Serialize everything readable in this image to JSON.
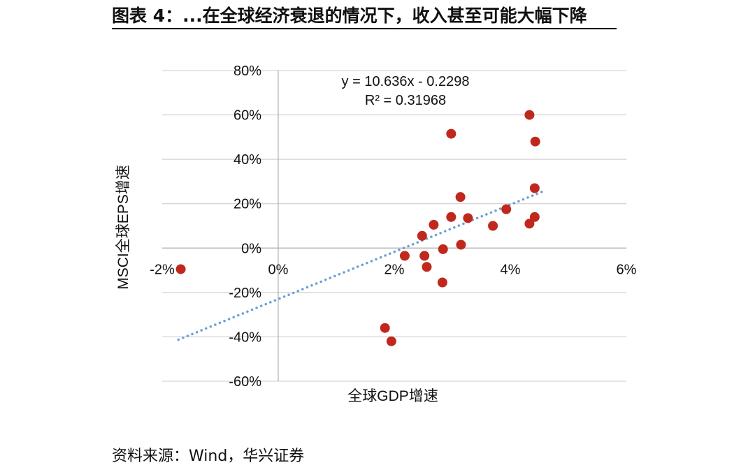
{
  "page": {
    "title": "图表 4：...在全球经济衰退的情况下，收入甚至可能大幅下降",
    "source": "资料来源：Wind，华兴证券"
  },
  "chart_data": {
    "type": "scatter",
    "xlabel": "全球GDP增速",
    "ylabel": "MSCI全球EPS增速",
    "xlim": [
      -0.02,
      0.06
    ],
    "ylim": [
      -0.6,
      0.8
    ],
    "x_ticks": [
      -0.02,
      0,
      0.02,
      0.04,
      0.06
    ],
    "x_tick_labels": [
      "-2%",
      "0%",
      "2%",
      "4%",
      "6%"
    ],
    "y_ticks": [
      -0.6,
      -0.4,
      -0.2,
      0,
      0.2,
      0.4,
      0.6,
      0.8
    ],
    "y_tick_labels": [
      "-60%",
      "-40%",
      "-20%",
      "0%",
      "20%",
      "40%",
      "60%",
      "80%"
    ],
    "grid": "horizontal",
    "marker_color": "#c0281d",
    "trendline_color": "#6a9fd4",
    "trendline": {
      "slope": 10.636,
      "intercept": -0.2298,
      "x_range": [
        -0.0172,
        0.0455
      ],
      "equation": "y = 10.636x - 0.2298",
      "r2": "R² = 0.31968"
    },
    "points": [
      {
        "x": -0.0168,
        "y": -0.095
      },
      {
        "x": 0.0184,
        "y": -0.36
      },
      {
        "x": 0.0195,
        "y": -0.42
      },
      {
        "x": 0.0218,
        "y": -0.035
      },
      {
        "x": 0.0248,
        "y": 0.055
      },
      {
        "x": 0.0252,
        "y": -0.035
      },
      {
        "x": 0.0256,
        "y": -0.085
      },
      {
        "x": 0.0268,
        "y": 0.105
      },
      {
        "x": 0.0284,
        "y": -0.005
      },
      {
        "x": 0.0283,
        "y": -0.155
      },
      {
        "x": 0.0298,
        "y": 0.515
      },
      {
        "x": 0.0298,
        "y": 0.14
      },
      {
        "x": 0.0314,
        "y": 0.23
      },
      {
        "x": 0.0315,
        "y": 0.015
      },
      {
        "x": 0.0327,
        "y": 0.135
      },
      {
        "x": 0.037,
        "y": 0.1
      },
      {
        "x": 0.0393,
        "y": 0.175
      },
      {
        "x": 0.0433,
        "y": 0.6
      },
      {
        "x": 0.0433,
        "y": 0.11
      },
      {
        "x": 0.0443,
        "y": 0.48
      },
      {
        "x": 0.0442,
        "y": 0.27
      },
      {
        "x": 0.0442,
        "y": 0.14
      }
    ]
  }
}
